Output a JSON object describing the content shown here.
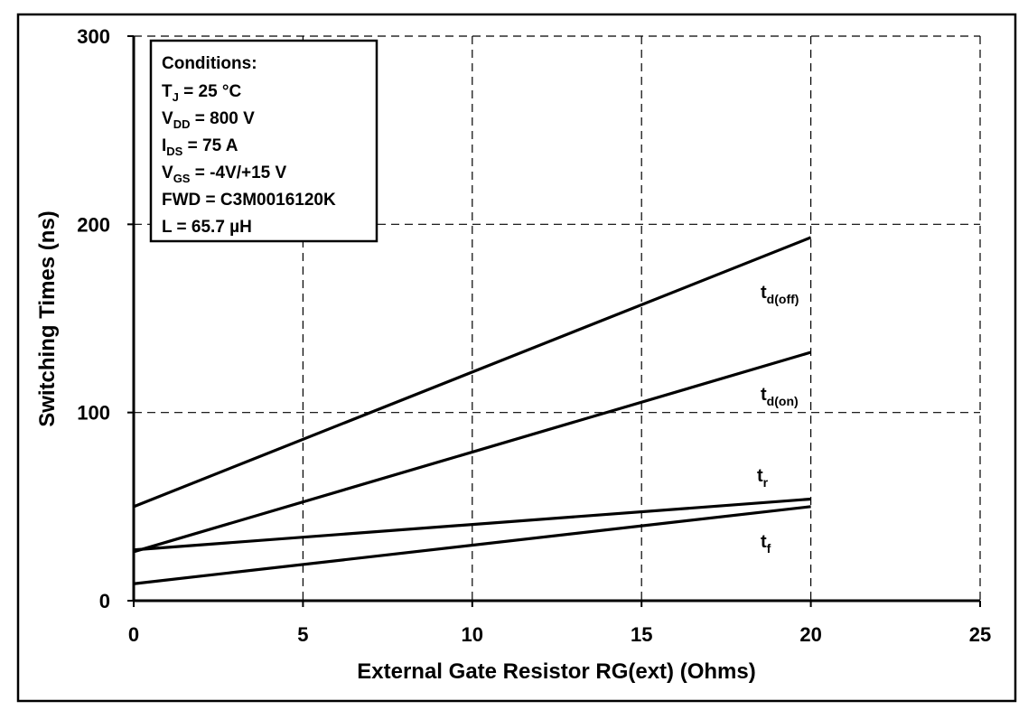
{
  "chart_data": {
    "type": "line",
    "title": "",
    "xlabel": "External Gate Resistor RG(ext) (Ohms)",
    "ylabel": "Switching Times (ns)",
    "xlim": [
      0,
      25
    ],
    "ylim": [
      0,
      300
    ],
    "xticks": [
      "0",
      "5",
      "10",
      "15",
      "20",
      "25"
    ],
    "yticks": [
      "0",
      "100",
      "200",
      "300"
    ],
    "grid": "dashed",
    "legend": "inline labels at right end of lines",
    "series": [
      {
        "name": "t_d(off)",
        "label_main": "t",
        "label_sub": "d(off)",
        "x": [
          0,
          20
        ],
        "y": [
          50,
          193
        ]
      },
      {
        "name": "t_d(on)",
        "label_main": "t",
        "label_sub": "d(on)",
        "x": [
          0,
          20
        ],
        "y": [
          26,
          132
        ]
      },
      {
        "name": "t_r",
        "label_main": "t",
        "label_sub": "r",
        "x": [
          0,
          20
        ],
        "y": [
          27,
          54
        ]
      },
      {
        "name": "t_f",
        "label_main": "t",
        "label_sub": "f",
        "x": [
          0,
          20
        ],
        "y": [
          9,
          50
        ]
      }
    ],
    "annotation": {
      "header": "Conditions:",
      "lines": [
        {
          "main": "T",
          "sub": "J",
          "rest": " = 25 °C"
        },
        {
          "main": "V",
          "sub": "DD",
          "rest": " = 800 V"
        },
        {
          "main": "I",
          "sub": "DS",
          "rest": " = 75 A"
        },
        {
          "main": "V",
          "sub": "GS",
          "rest": " = -4V/+15 V"
        },
        {
          "main": "FWD = C3M0016120K",
          "sub": "",
          "rest": ""
        },
        {
          "main": "L = 65.7 µH",
          "sub": "",
          "rest": ""
        }
      ]
    }
  }
}
